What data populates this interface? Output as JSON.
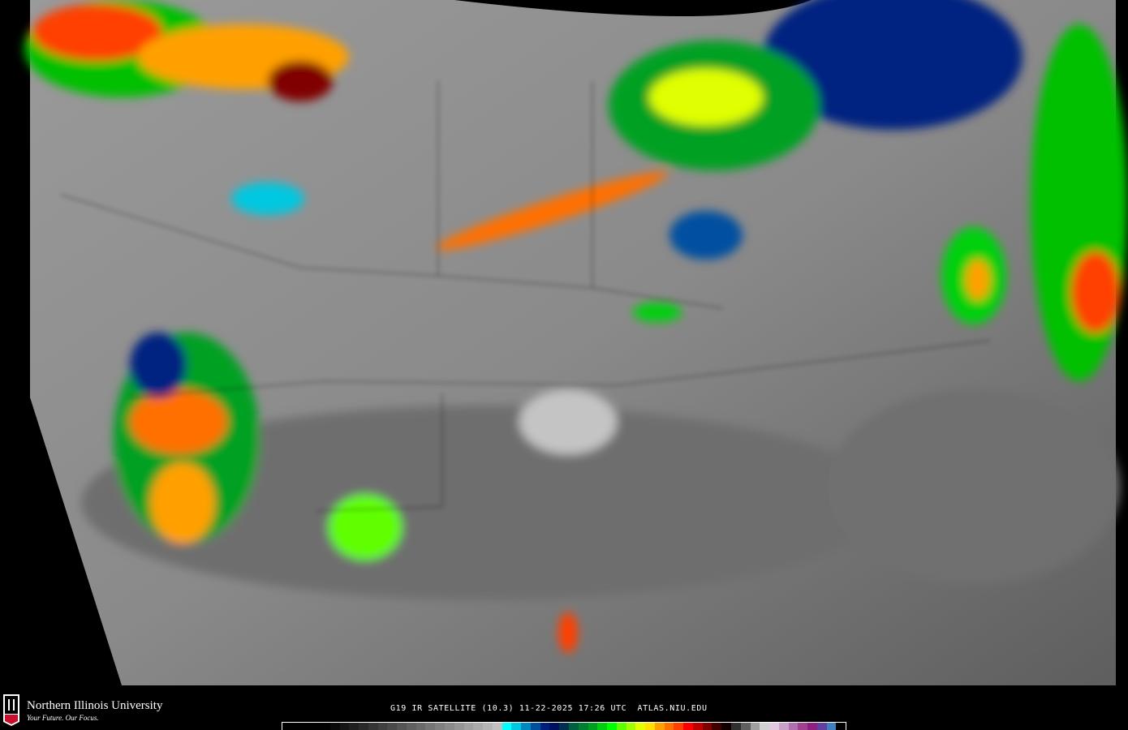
{
  "branding": {
    "university": "Northern Illinois University",
    "tagline": "Your Future. Our Focus.",
    "logo_text": "NIU"
  },
  "caption": "G19 IR SATELLITE (10.3) 11-22-2025 17:26 UTC  ATLAS.NIU.EDU",
  "colorbar": {
    "colors": [
      "#000000",
      "#000000",
      "#000000",
      "#000000",
      "#000000",
      "#0a0a0a",
      "#151515",
      "#1f1f1f",
      "#2a2a2a",
      "#353535",
      "#404040",
      "#4a4a4a",
      "#555555",
      "#606060",
      "#6a6a6a",
      "#757575",
      "#808080",
      "#8a8a8a",
      "#959595",
      "#a0a0a0",
      "#aaaaaa",
      "#b5b5b5",
      "#c0c0c0",
      "#00ffff",
      "#00c8e0",
      "#0088c0",
      "#0050a0",
      "#002080",
      "#001060",
      "#003050",
      "#006040",
      "#008030",
      "#00a020",
      "#00d010",
      "#00ff00",
      "#60ff00",
      "#a0ff00",
      "#e0ff00",
      "#ffe000",
      "#ffa000",
      "#ff7000",
      "#ff4000",
      "#ff0000",
      "#c00000",
      "#800000",
      "#400000",
      "#100000",
      "#303030",
      "#606060",
      "#a0a0a0",
      "#d0d0d0",
      "#e0c8e0",
      "#c8a0c8",
      "#b070b0",
      "#a04090",
      "#902080",
      "#6040a0",
      "#4080c0",
      "#000000"
    ]
  }
}
